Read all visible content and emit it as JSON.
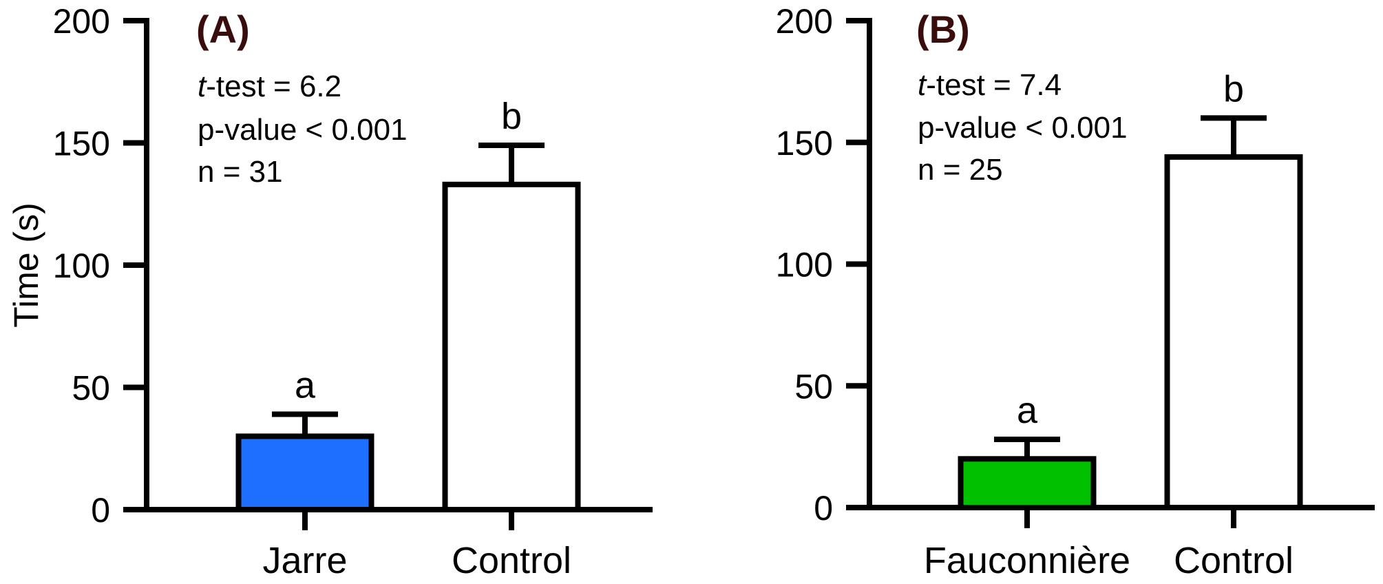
{
  "chart_data": [
    {
      "type": "bar",
      "panel_label": "(A)",
      "ylabel": "Time (s)",
      "ylim": [
        0,
        200
      ],
      "yticks": [
        "0",
        "50",
        "100",
        "150",
        "200"
      ],
      "categories": [
        "Jarre",
        "Control"
      ],
      "values": [
        30,
        133
      ],
      "errors": [
        9,
        16
      ],
      "colors": [
        "#1f6fff",
        "#ffffff"
      ],
      "significance": [
        "a",
        "b"
      ],
      "stats": {
        "test_italic": "t",
        "test_rest": "-test = 6.2",
        "pvalue": "p-value < 0.001",
        "n": "n = 31"
      }
    },
    {
      "type": "bar",
      "panel_label": "(B)",
      "ylabel": "",
      "ylim": [
        0,
        200
      ],
      "yticks": [
        "0",
        "50",
        "100",
        "150",
        "200"
      ],
      "categories": [
        "Fauconnière",
        "Control"
      ],
      "values": [
        20,
        144
      ],
      "errors": [
        8,
        16
      ],
      "colors": [
        "#00c000",
        "#ffffff"
      ],
      "significance": [
        "a",
        "b"
      ],
      "stats": {
        "test_italic": "t",
        "test_rest": "-test = 7.4",
        "pvalue": "p-value < 0.001",
        "n": "n = 25"
      }
    }
  ]
}
